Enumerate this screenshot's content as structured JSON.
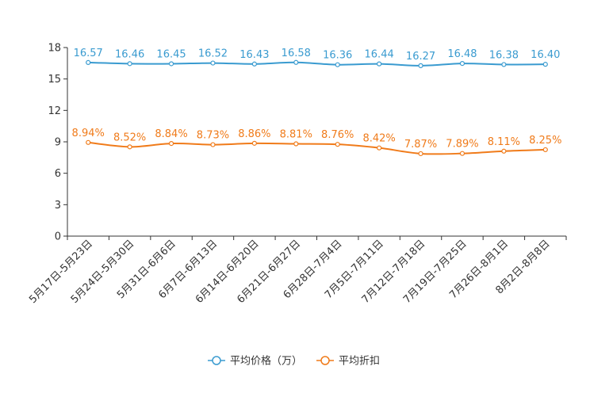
{
  "chart_data": {
    "type": "line",
    "categories": [
      "5月17日-5月23日",
      "5月24日-5月30日",
      "5月31日-6月6日",
      "6月7日-6月13日",
      "6月14日-6月20日",
      "6月21日-6月27日",
      "6月28日-7月4日",
      "7月5日-7月11日",
      "7月12日-7月18日",
      "7月19日-7月25日",
      "7月26日-8月1日",
      "8月2日-8月8日"
    ],
    "series": [
      {
        "name": "平均价格（万）",
        "color": "#3a9bd0",
        "values": [
          16.57,
          16.46,
          16.45,
          16.52,
          16.43,
          16.58,
          16.36,
          16.44,
          16.27,
          16.48,
          16.38,
          16.4
        ],
        "labels": [
          "16.57",
          "16.46",
          "16.45",
          "16.52",
          "16.43",
          "16.58",
          "16.36",
          "16.44",
          "16.27",
          "16.48",
          "16.38",
          "16.40"
        ]
      },
      {
        "name": "平均折扣",
        "color": "#f07b1a",
        "values": [
          8.94,
          8.52,
          8.84,
          8.73,
          8.86,
          8.81,
          8.76,
          8.42,
          7.87,
          7.89,
          8.11,
          8.25
        ],
        "labels": [
          "8.94%",
          "8.52%",
          "8.84%",
          "8.73%",
          "8.86%",
          "8.81%",
          "8.76%",
          "8.42%",
          "7.87%",
          "7.89%",
          "8.11%",
          "8.25%"
        ]
      }
    ],
    "yticks": [
      "0",
      "3",
      "6",
      "9",
      "12",
      "15",
      "18"
    ],
    "ylim": [
      0,
      18
    ],
    "xlabel": "",
    "ylabel": "",
    "title": "",
    "legend_position": "bottom-center"
  }
}
